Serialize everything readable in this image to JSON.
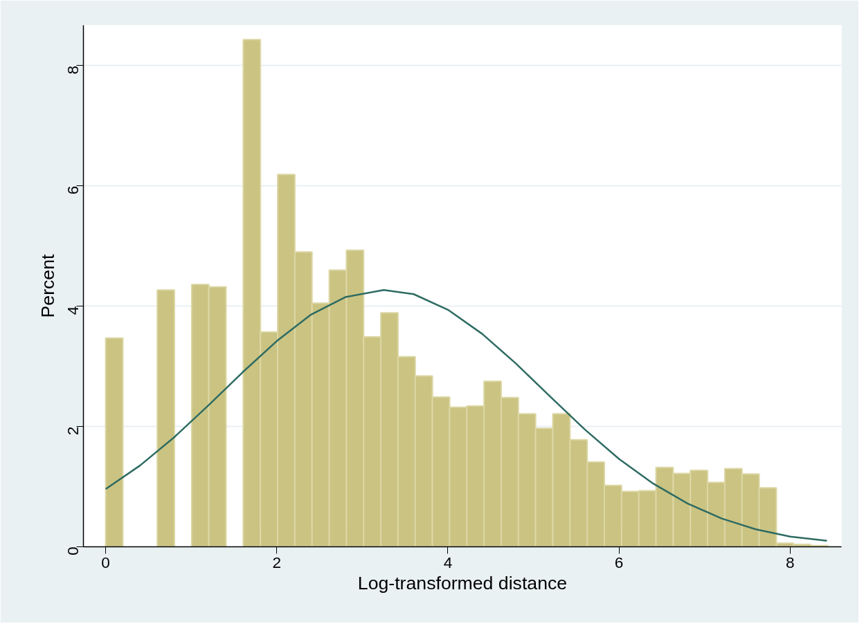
{
  "chart_data": {
    "type": "histogram",
    "xlabel": "Log-transformed distance",
    "ylabel": "Percent",
    "bins": [
      0,
      0.201,
      0.402,
      0.603,
      0.804,
      1.005,
      1.206,
      1.407,
      1.608,
      1.809,
      2.01,
      2.211,
      2.412,
      2.613,
      2.814,
      3.015,
      3.216,
      3.417,
      3.618,
      3.819,
      4.02,
      4.221,
      4.422,
      4.623,
      4.824,
      5.025,
      5.226,
      5.427,
      5.628,
      5.829,
      6.03,
      6.231,
      6.432,
      6.633,
      6.834,
      7.035,
      7.236,
      7.437,
      7.638,
      7.839,
      8.04,
      8.241,
      8.442
    ],
    "values": [
      3.47,
      0,
      0,
      4.27,
      0,
      4.36,
      4.32,
      0,
      8.43,
      3.57,
      6.19,
      4.9,
      4.05,
      4.6,
      4.93,
      3.49,
      3.89,
      3.16,
      2.84,
      2.49,
      2.32,
      2.34,
      2.75,
      2.48,
      2.21,
      1.97,
      2.21,
      1.78,
      1.41,
      1.02,
      0.92,
      0.93,
      1.32,
      1.22,
      1.27,
      1.07,
      1.3,
      1.21,
      0.98,
      0.06,
      0.04,
      0.02
    ],
    "color": "#cbc382",
    "series": [
      {
        "type": "line",
        "color": "#2e6b62",
        "x": [
          0,
          0.4,
          0.8,
          1.2,
          1.6,
          2.0,
          2.4,
          2.8,
          3.25,
          3.6,
          4.0,
          4.4,
          4.8,
          5.2,
          5.6,
          6.0,
          6.4,
          6.8,
          7.2,
          7.6,
          8.0,
          8.43
        ],
        "values": [
          0.96,
          1.35,
          1.82,
          2.35,
          2.9,
          3.42,
          3.86,
          4.15,
          4.27,
          4.2,
          3.94,
          3.54,
          3.04,
          2.49,
          1.95,
          1.46,
          1.05,
          0.72,
          0.47,
          0.29,
          0.17,
          0.1
        ]
      }
    ],
    "xlim": [
      -0.26,
      8.6
    ],
    "ylim": [
      0,
      8.67
    ],
    "xticks": [
      0,
      2,
      4,
      6,
      8
    ],
    "yticks": [
      0,
      2,
      4,
      6,
      8
    ],
    "grid": "y"
  }
}
